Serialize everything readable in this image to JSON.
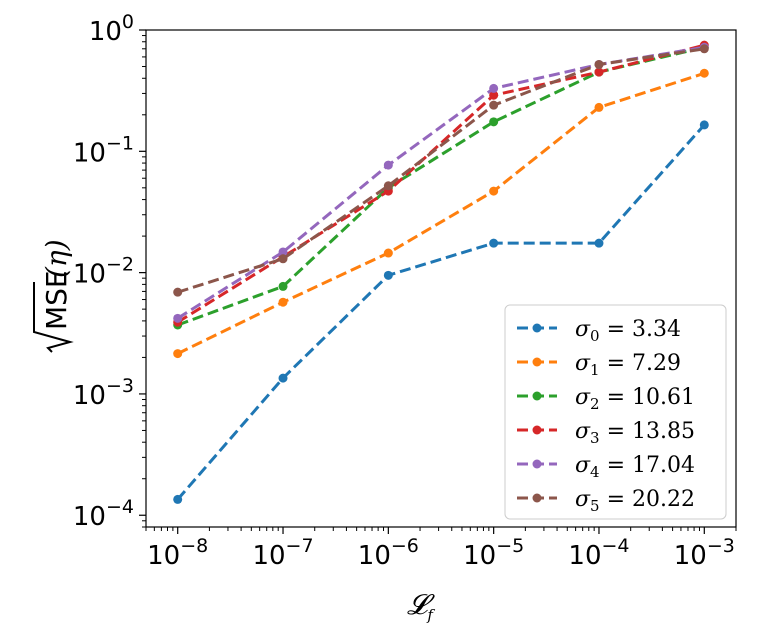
{
  "chart_data": {
    "type": "line",
    "title": "",
    "xlabel": "𝓛",
    "xlabel_sub": "f",
    "ylabel": "MSE",
    "ylabel_arg": "(η)",
    "xscale": "log",
    "yscale": "log",
    "xlim": [
      5e-09,
      0.002
    ],
    "ylim": [
      8e-05,
      1
    ],
    "x_ticks": [
      {
        "value": 1e-08,
        "base": "10",
        "exp": "−8"
      },
      {
        "value": 1e-07,
        "base": "10",
        "exp": "−7"
      },
      {
        "value": 1e-06,
        "base": "10",
        "exp": "−6"
      },
      {
        "value": 1e-05,
        "base": "10",
        "exp": "−5"
      },
      {
        "value": 0.0001,
        "base": "10",
        "exp": "−4"
      },
      {
        "value": 0.001,
        "base": "10",
        "exp": "−3"
      }
    ],
    "y_ticks": [
      {
        "value": 0.0001,
        "base": "10",
        "exp": "−4"
      },
      {
        "value": 0.001,
        "base": "10",
        "exp": "−3"
      },
      {
        "value": 0.01,
        "base": "10",
        "exp": "−2"
      },
      {
        "value": 0.1,
        "base": "10",
        "exp": "−1"
      },
      {
        "value": 1,
        "base": "10",
        "exp": "0"
      }
    ],
    "x": [
      1e-08,
      1e-07,
      1e-06,
      1e-05,
      0.0001,
      0.001
    ],
    "series": [
      {
        "name": "σ",
        "sub": "0",
        "value_text": " = 3.34",
        "color": "#1f77b4",
        "values": [
          0.000135,
          0.00135,
          0.0095,
          0.0175,
          0.0175,
          0.165
        ]
      },
      {
        "name": "σ",
        "sub": "1",
        "value_text": " = 7.29",
        "color": "#ff7f0e",
        "values": [
          0.00215,
          0.0057,
          0.0145,
          0.047,
          0.23,
          0.44
        ]
      },
      {
        "name": "σ",
        "sub": "2",
        "value_text": " = 10.61",
        "color": "#2ca02c",
        "values": [
          0.0037,
          0.0077,
          0.05,
          0.175,
          0.45,
          0.72
        ]
      },
      {
        "name": "σ",
        "sub": "3",
        "value_text": " = 13.85",
        "color": "#d62728",
        "values": [
          0.0039,
          0.0135,
          0.047,
          0.29,
          0.45,
          0.75
        ]
      },
      {
        "name": "σ",
        "sub": "4",
        "value_text": " = 17.04",
        "color": "#9467bd",
        "values": [
          0.0042,
          0.0148,
          0.077,
          0.33,
          0.52,
          0.72
        ]
      },
      {
        "name": "σ",
        "sub": "5",
        "value_text": " = 20.22",
        "color": "#8c564b",
        "values": [
          0.0069,
          0.013,
          0.052,
          0.24,
          0.52,
          0.7
        ]
      }
    ],
    "legend_position": "lower-right",
    "grid": false
  }
}
